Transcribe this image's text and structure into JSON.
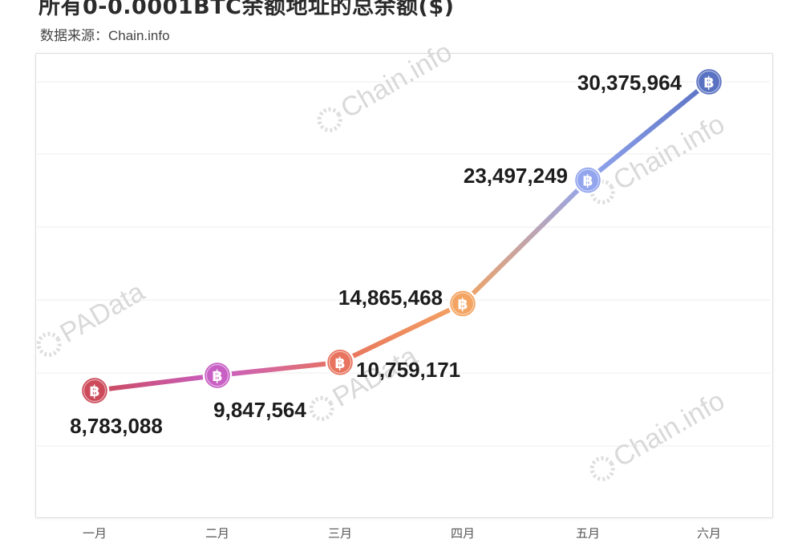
{
  "header": {
    "title": "所有0-0.0001BTC余额地址的总余额($)",
    "source": "数据来源：Chain.info"
  },
  "watermarks": [
    "Chain.info",
    "PAData",
    "PAData",
    "Chain.info",
    "Chain.info"
  ],
  "colors": {
    "m1": "#cc4a5a",
    "m2": "#c85fc4",
    "m3": "#e8735e",
    "m4": "#f3a462",
    "m5": "#92a5ee",
    "m6": "#5a72c2"
  },
  "marker_icon": "bitcoin-icon",
  "chart_data": {
    "type": "line",
    "title": "所有0-0.0001BTC余额地址的总余额($)",
    "categories": [
      "一月",
      "二月",
      "三月",
      "四月",
      "五月",
      "六月"
    ],
    "values": [
      8783088,
      9847564,
      10759171,
      14865468,
      23497249,
      30375964
    ],
    "value_labels": [
      "8,783,088",
      "9,847,564",
      "10,759,171",
      "14,865,468",
      "23,497,249",
      "30,375,964"
    ],
    "grid": true,
    "legend": "none"
  }
}
